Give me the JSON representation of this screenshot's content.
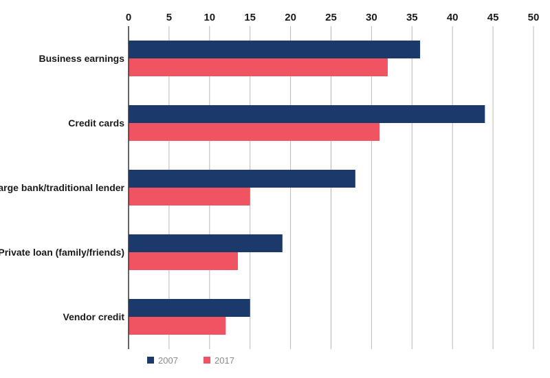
{
  "chart_data": {
    "type": "bar",
    "orientation": "horizontal",
    "title": "",
    "xlabel": "",
    "ylabel": "",
    "xlim": [
      0,
      50
    ],
    "xticks": [
      0,
      5,
      10,
      15,
      20,
      25,
      30,
      35,
      40,
      45,
      50
    ],
    "x_axis_position": "top",
    "grid": true,
    "legend_position": "bottom-left",
    "categories": [
      "Business earnings",
      "Credit cards",
      "Large bank/traditional lender",
      "Private loan (family/friends)",
      "Vendor credit"
    ],
    "series": [
      {
        "name": "2007",
        "color": "#1b3a6b",
        "values": [
          36,
          44,
          28,
          19,
          15
        ]
      },
      {
        "name": "2017",
        "color": "#f05462",
        "values": [
          32,
          31,
          15,
          13.5,
          12
        ]
      }
    ]
  }
}
